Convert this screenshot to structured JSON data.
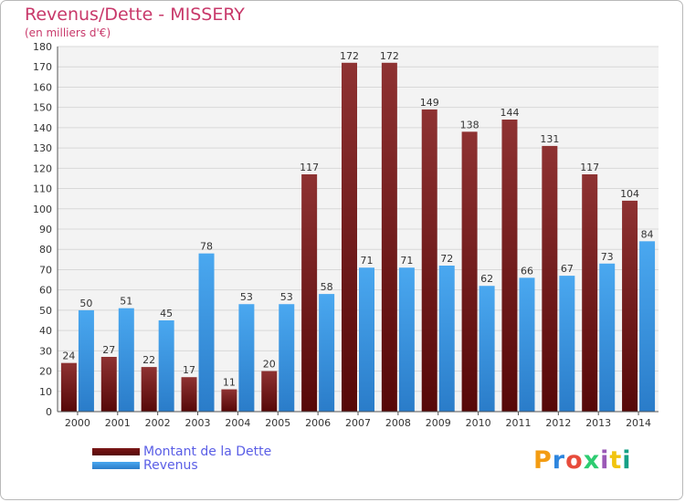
{
  "chart_data": {
    "type": "bar",
    "title": "Revenus/Dette - MISSERY",
    "subtitle": "(en milliers d'€)",
    "categories": [
      "2000",
      "2001",
      "2002",
      "2003",
      "2004",
      "2005",
      "2006",
      "2007",
      "2008",
      "2009",
      "2010",
      "2011",
      "2012",
      "2013",
      "2014"
    ],
    "series": [
      {
        "name": "Montant de la Dette",
        "color": "#7a1818",
        "values": [
          24,
          27,
          22,
          17,
          11,
          20,
          117,
          172,
          172,
          149,
          138,
          144,
          131,
          117,
          104
        ]
      },
      {
        "name": "Revenus",
        "color": "#3d9be9",
        "values": [
          50,
          51,
          45,
          78,
          53,
          53,
          58,
          71,
          71,
          72,
          62,
          66,
          67,
          73,
          84
        ]
      }
    ],
    "ylim": [
      0,
      180
    ],
    "yticks": [
      0,
      10,
      20,
      30,
      40,
      50,
      60,
      70,
      80,
      90,
      100,
      110,
      120,
      130,
      140,
      150,
      160,
      170,
      180
    ],
    "grid": true,
    "legend_position": "bottom-left",
    "colors": {
      "title": "#c8386a",
      "legend_text": "#5a5ee6",
      "grid": "#d8d8d8",
      "plot_background": "#f3f3f3"
    }
  },
  "logo": {
    "text": "Proxiti",
    "colors": [
      "#f39c12",
      "#2e86de",
      "#e74c3c",
      "#2ecc71",
      "#9b59b6",
      "#f1c40f",
      "#16a085"
    ]
  }
}
